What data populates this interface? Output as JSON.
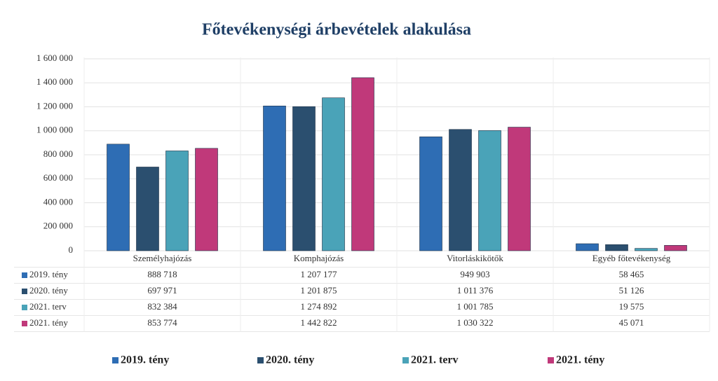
{
  "chart_data": {
    "type": "bar",
    "title": "Főtevékenységi árbevételek alakulása",
    "categories": [
      "Személyhajózás",
      "Komphajózás",
      "Vitorláskikötők",
      "Egyéb főtevékenység"
    ],
    "series": [
      {
        "name": "2019. tény",
        "color": "#2e6db4",
        "values": [
          888718,
          1207177,
          949903,
          58465
        ],
        "value_labels": [
          "888 718",
          "1 207 177",
          "949 903",
          "58 465"
        ]
      },
      {
        "name": "2020. tény",
        "color": "#2b4f6f",
        "values": [
          697971,
          1201875,
          1011376,
          51126
        ],
        "value_labels": [
          "697 971",
          "1 201 875",
          "1 011 376",
          "51 126"
        ]
      },
      {
        "name": "2021. terv",
        "color": "#4aa3b8",
        "values": [
          832384,
          1274892,
          1001785,
          19575
        ],
        "value_labels": [
          "832 384",
          "1 274 892",
          "1 001 785",
          "19 575"
        ]
      },
      {
        "name": "2021. tény",
        "color": "#c0397a",
        "values": [
          853774,
          1442822,
          1030322,
          45071
        ],
        "value_labels": [
          "853 774",
          "1 442 822",
          "1 030 322",
          "45 071"
        ]
      }
    ],
    "ylim": [
      0,
      1600000
    ],
    "yticks": [
      0,
      {
        "value": 200000,
        "label": "200 000"
      },
      {
        "value": 400000,
        "label": "400 000"
      },
      {
        "value": 600000,
        "label": "600 000"
      },
      {
        "value": 800000,
        "label": "800 000"
      },
      {
        "value": 1000000,
        "label": "1 000 000"
      },
      {
        "value": 1200000,
        "label": "1 200 000"
      },
      {
        "value": 1400000,
        "label": "1 400 000"
      },
      {
        "value": 1600000,
        "label": "1 600 000"
      }
    ],
    "grid": true,
    "legend": "bottom"
  }
}
